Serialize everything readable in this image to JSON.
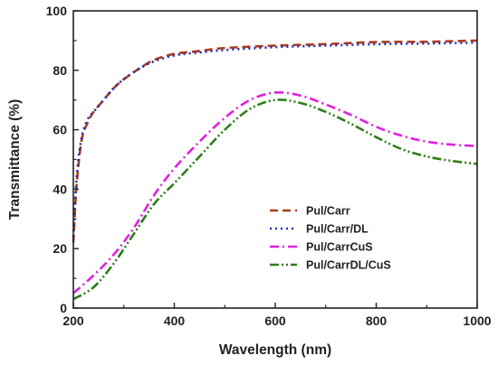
{
  "chart_data": {
    "type": "line",
    "xlabel": "Wavelength (nm)",
    "ylabel": "Transmittance (%)",
    "xlim": [
      200,
      1000
    ],
    "ylim": [
      0,
      100
    ],
    "xticks": [
      200,
      400,
      600,
      800,
      1000
    ],
    "yticks": [
      0,
      20,
      40,
      60,
      80,
      100
    ],
    "grid": false,
    "legend_position": "bottom-right",
    "series": [
      {
        "name": "Pul/Carr",
        "color": "#b03a1a",
        "dash": "dash",
        "x": [
          200,
          205,
          210,
          215,
          220,
          230,
          240,
          260,
          280,
          300,
          330,
          360,
          400,
          450,
          500,
          600,
          700,
          800,
          900,
          1000
        ],
        "y": [
          22,
          38,
          48,
          55,
          59,
          63,
          66,
          70,
          74,
          77,
          80.5,
          83.5,
          85.5,
          86.5,
          87.5,
          88.3,
          88.8,
          89.5,
          89.6,
          90
        ]
      },
      {
        "name": "Pul/Carr/DL",
        "color": "#1f2eb4",
        "dash": "dot",
        "x": [
          200,
          205,
          210,
          215,
          220,
          230,
          240,
          260,
          280,
          300,
          330,
          360,
          400,
          450,
          500,
          600,
          700,
          800,
          900,
          1000
        ],
        "y": [
          24,
          40,
          50,
          56,
          60,
          64,
          66,
          70,
          74,
          77,
          80.5,
          83,
          85,
          86,
          86.8,
          87.8,
          88.3,
          88.8,
          89,
          89.3
        ]
      },
      {
        "name": "Pul/CarrCuS",
        "color": "#e020e0",
        "dash": "dashdot",
        "x": [
          200,
          240,
          280,
          320,
          360,
          400,
          450,
          500,
          550,
          600,
          650,
          700,
          750,
          800,
          850,
          900,
          950,
          1000
        ],
        "y": [
          5,
          11,
          18,
          27,
          38,
          47,
          56,
          64,
          70,
          72.5,
          71.5,
          68.5,
          65,
          61,
          58,
          56,
          55,
          54.5
        ]
      },
      {
        "name": "Pul/CarrDL/CuS",
        "color": "#2e7d1a",
        "dash": "dashdotdot",
        "x": [
          200,
          240,
          280,
          320,
          360,
          400,
          450,
          500,
          550,
          600,
          650,
          700,
          750,
          800,
          850,
          900,
          950,
          1000
        ],
        "y": [
          3,
          7,
          15,
          25,
          35,
          42,
          51,
          60,
          67,
          70,
          69,
          66,
          62,
          57.5,
          53.5,
          51,
          49.5,
          48.5
        ]
      }
    ]
  }
}
